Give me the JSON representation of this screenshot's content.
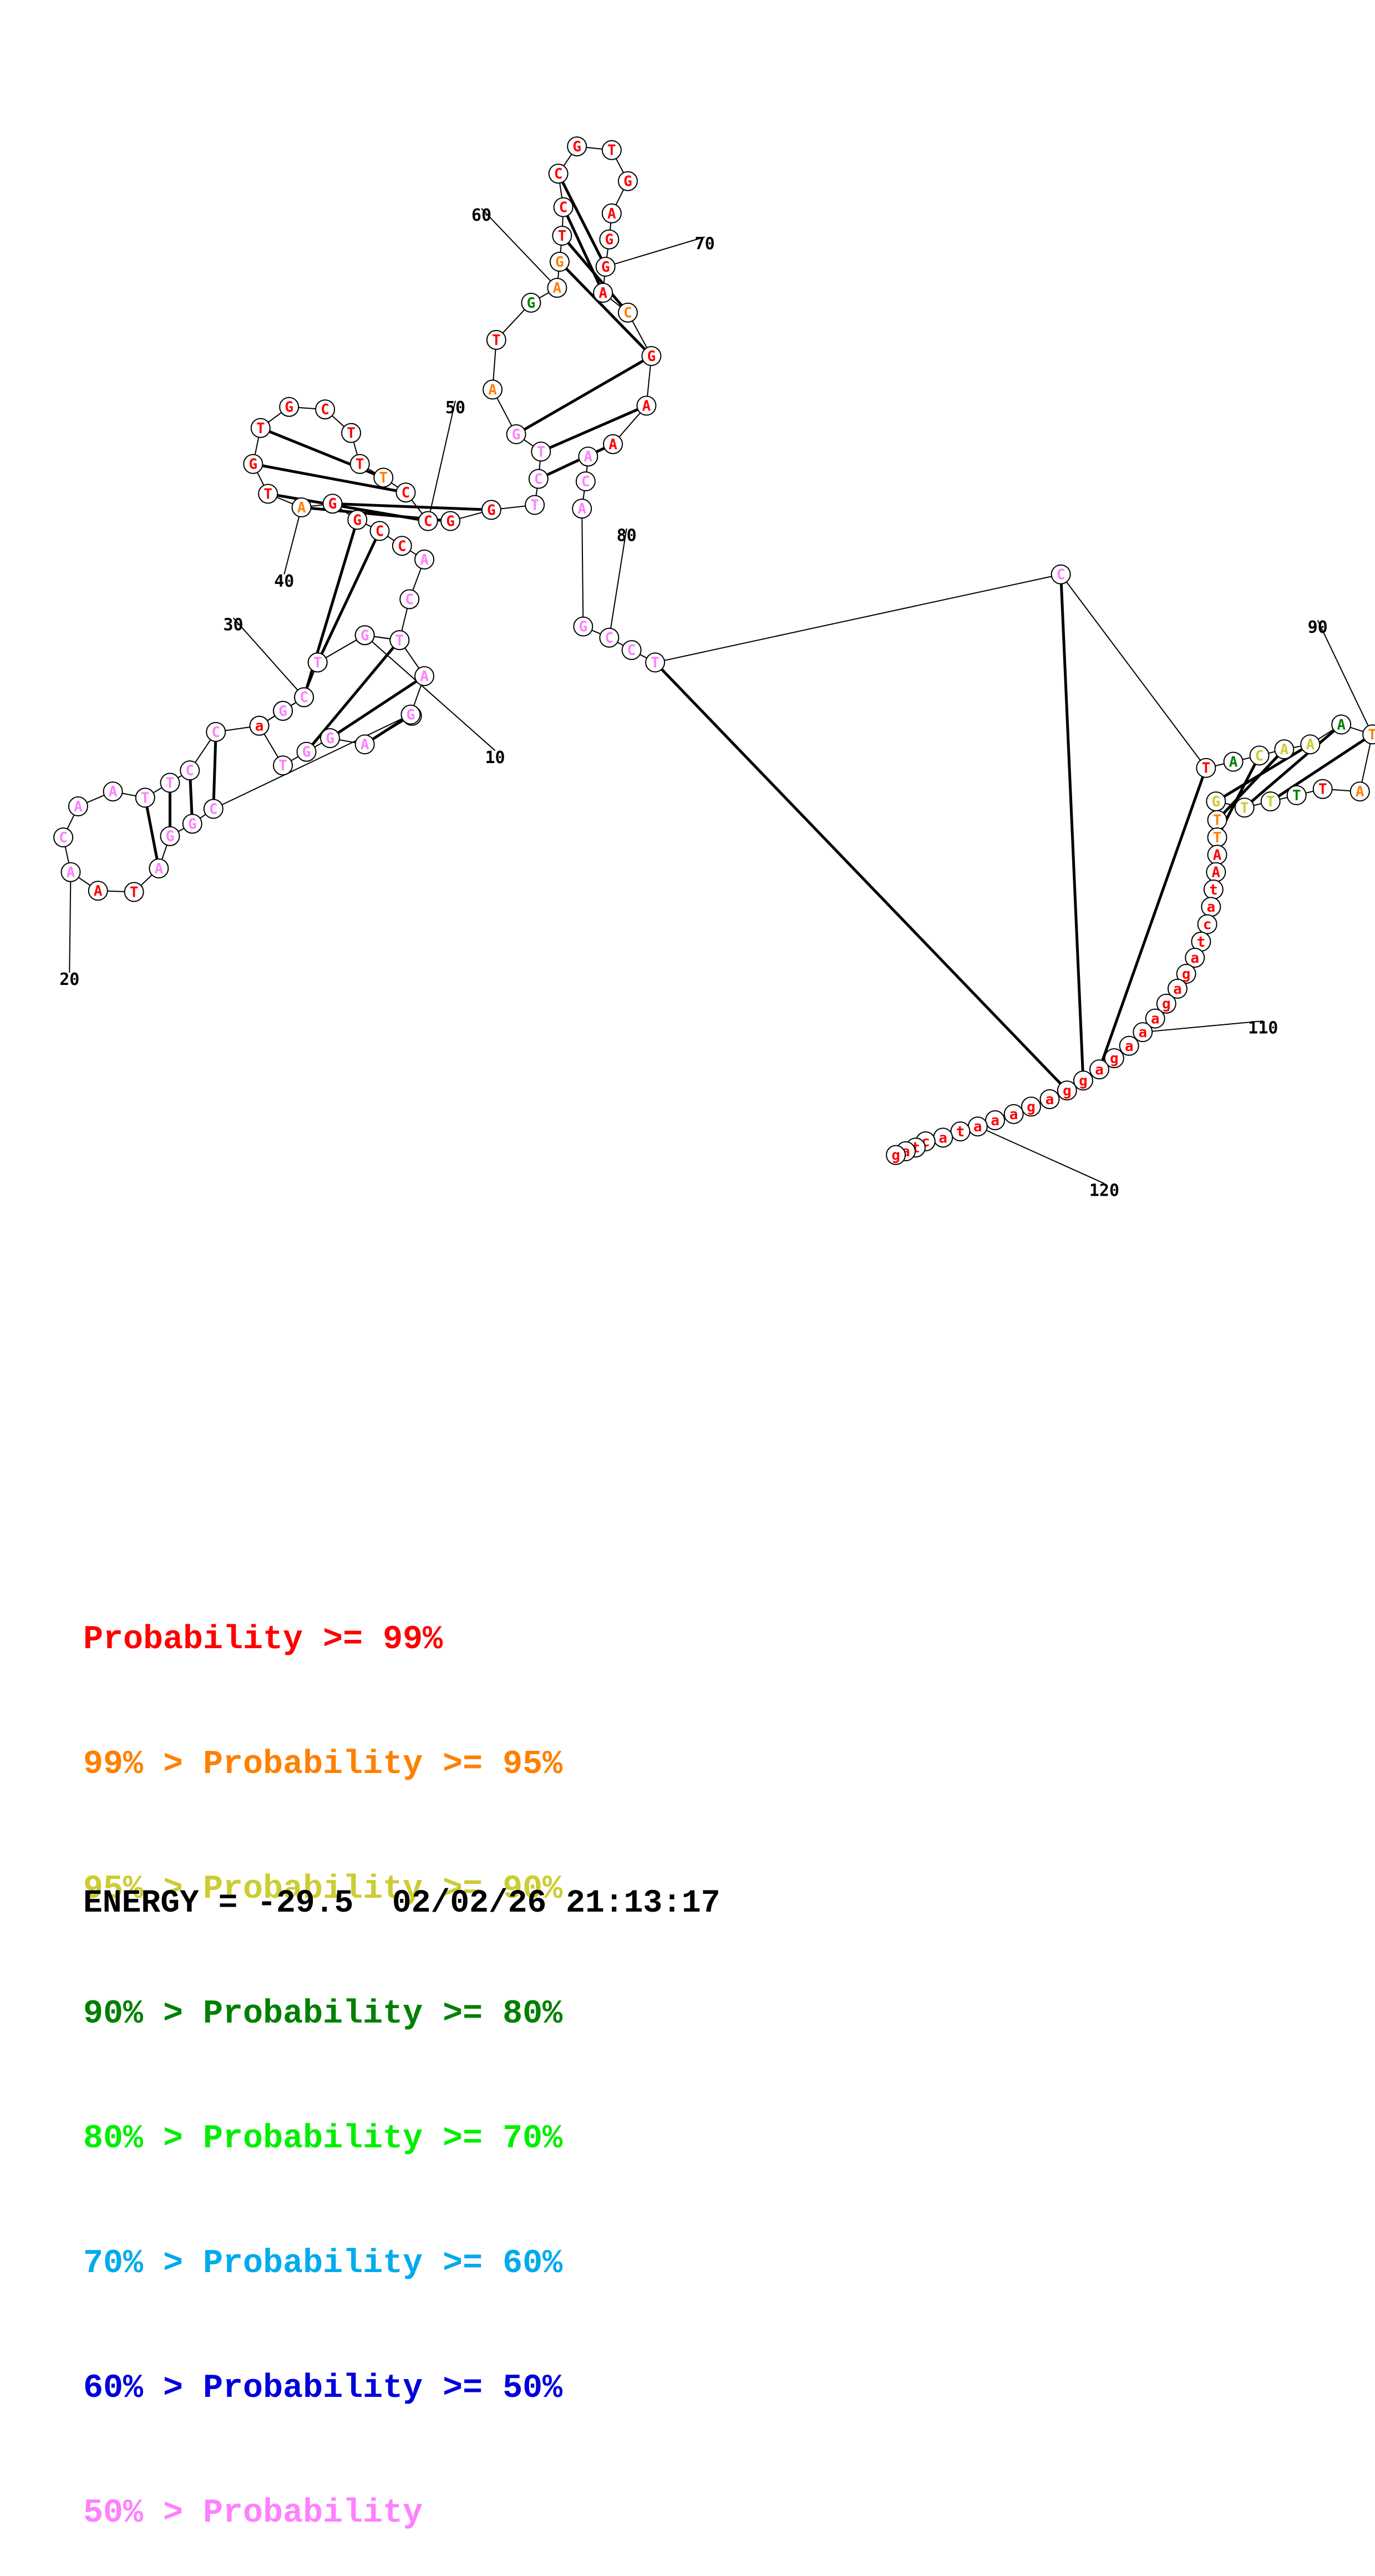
{
  "colors": {
    "p99": "#ff0000",
    "p95": "#ff8000",
    "p90": "#cccc33",
    "p80": "#008000",
    "p70": "#00ee00",
    "p60": "#00aaee",
    "p50": "#0000dd",
    "low": "#ff80ff"
  },
  "structure": {
    "nucleotides": [
      {
        "n": 1,
        "base": "G",
        "p": "p99"
      },
      {
        "n": 2,
        "base": "A",
        "p": "low"
      },
      {
        "n": 3,
        "base": "G",
        "p": "low"
      },
      {
        "n": 4,
        "base": "G",
        "p": "low"
      },
      {
        "n": 5,
        "base": "T",
        "p": "low"
      },
      {
        "n": 6,
        "base": "T",
        "p": "low"
      },
      {
        "n": 7,
        "base": "G",
        "p": "low"
      },
      {
        "n": 8,
        "base": "T",
        "p": "low"
      },
      {
        "n": 9,
        "base": "C",
        "p": "low"
      },
      {
        "n": 10,
        "base": "T",
        "p": "low"
      },
      {
        "n": 11,
        "base": "G",
        "p": "p99"
      },
      {
        "n": 12,
        "base": "A",
        "p": "low"
      },
      {
        "n": 13,
        "base": "G",
        "p": "low"
      },
      {
        "n": 14,
        "base": "C",
        "p": "low"
      },
      {
        "n": 15,
        "base": "G",
        "p": "low"
      },
      {
        "n": 16,
        "base": "G",
        "p": "low"
      },
      {
        "n": 17,
        "base": "A",
        "p": "low"
      },
      {
        "n": 18,
        "base": "T",
        "p": "p99"
      },
      {
        "n": 19,
        "base": "A",
        "p": "p99"
      },
      {
        "n": 20,
        "base": "A",
        "p": "low"
      },
      {
        "n": 21,
        "base": "C",
        "p": "low"
      },
      {
        "n": 22,
        "base": "A",
        "p": "low"
      },
      {
        "n": 23,
        "base": "A",
        "p": "low"
      },
      {
        "n": 24,
        "base": "T",
        "p": "low"
      },
      {
        "n": 25,
        "base": "T",
        "p": "low"
      },
      {
        "n": 26,
        "base": "C",
        "p": "low"
      },
      {
        "n": 27,
        "base": "C",
        "p": "low"
      },
      {
        "n": 28,
        "base": "a",
        "p": "p99"
      },
      {
        "n": 29,
        "base": "G",
        "p": "low"
      },
      {
        "n": 30,
        "base": "C",
        "p": "low"
      },
      {
        "n": 31,
        "base": "T",
        "p": "low"
      },
      {
        "n": 32,
        "base": "G",
        "p": "low"
      },
      {
        "n": 33,
        "base": "T",
        "p": "low"
      },
      {
        "n": 34,
        "base": "C",
        "p": "low"
      },
      {
        "n": 35,
        "base": "A",
        "p": "low"
      },
      {
        "n": 36,
        "base": "C",
        "p": "p99"
      },
      {
        "n": 37,
        "base": "C",
        "p": "p99"
      },
      {
        "n": 38,
        "base": "G",
        "p": "p99"
      },
      {
        "n": 39,
        "base": "G",
        "p": "p99"
      },
      {
        "n": 40,
        "base": "A",
        "p": "p95"
      },
      {
        "n": 41,
        "base": "T",
        "p": "p99"
      },
      {
        "n": 42,
        "base": "G",
        "p": "p99"
      },
      {
        "n": 43,
        "base": "T",
        "p": "p99"
      },
      {
        "n": 44,
        "base": "G",
        "p": "p99"
      },
      {
        "n": 45,
        "base": "C",
        "p": "p99"
      },
      {
        "n": 46,
        "base": "T",
        "p": "p99"
      },
      {
        "n": 47,
        "base": "T",
        "p": "p99"
      },
      {
        "n": 48,
        "base": "T",
        "p": "p95"
      },
      {
        "n": 49,
        "base": "C",
        "p": "p99"
      },
      {
        "n": 50,
        "base": "C",
        "p": "p99"
      },
      {
        "n": 51,
        "base": "G",
        "p": "p99"
      },
      {
        "n": 52,
        "base": "G",
        "p": "p99"
      },
      {
        "n": 53,
        "base": "T",
        "p": "low"
      },
      {
        "n": 54,
        "base": "C",
        "p": "low"
      },
      {
        "n": 55,
        "base": "T",
        "p": "low"
      },
      {
        "n": 56,
        "base": "G",
        "p": "low"
      },
      {
        "n": 57,
        "base": "A",
        "p": "p95"
      },
      {
        "n": 58,
        "base": "T",
        "p": "p99"
      },
      {
        "n": 59,
        "base": "G",
        "p": "p80"
      },
      {
        "n": 60,
        "base": "A",
        "p": "p95"
      },
      {
        "n": 61,
        "base": "G",
        "p": "p95"
      },
      {
        "n": 62,
        "base": "T",
        "p": "p99"
      },
      {
        "n": 63,
        "base": "C",
        "p": "p99"
      },
      {
        "n": 64,
        "base": "C",
        "p": "p99"
      },
      {
        "n": 65,
        "base": "G",
        "p": "p99"
      },
      {
        "n": 66,
        "base": "T",
        "p": "p99"
      },
      {
        "n": 67,
        "base": "G",
        "p": "p99"
      },
      {
        "n": 68,
        "base": "A",
        "p": "p99"
      },
      {
        "n": 69,
        "base": "G",
        "p": "p99"
      },
      {
        "n": 70,
        "base": "G",
        "p": "p99"
      },
      {
        "n": 71,
        "base": "A",
        "p": "p99"
      },
      {
        "n": 72,
        "base": "C",
        "p": "p95"
      },
      {
        "n": 73,
        "base": "G",
        "p": "p99"
      },
      {
        "n": 74,
        "base": "A",
        "p": "p99"
      },
      {
        "n": 75,
        "base": "A",
        "p": "p99"
      },
      {
        "n": 76,
        "base": "A",
        "p": "low"
      },
      {
        "n": 77,
        "base": "C",
        "p": "low"
      },
      {
        "n": 78,
        "base": "A",
        "p": "low"
      },
      {
        "n": 79,
        "base": "G",
        "p": "low"
      },
      {
        "n": 80,
        "base": "C",
        "p": "low"
      },
      {
        "n": 81,
        "base": "C",
        "p": "low"
      },
      {
        "n": 82,
        "base": "T",
        "p": "low"
      },
      {
        "n": 83,
        "base": "C",
        "p": "low"
      },
      {
        "n": 84,
        "base": "T",
        "p": "p99"
      },
      {
        "n": 85,
        "base": "A",
        "p": "p80"
      },
      {
        "n": 86,
        "base": "C",
        "p": "p90"
      },
      {
        "n": 87,
        "base": "A",
        "p": "p90"
      },
      {
        "n": 88,
        "base": "A",
        "p": "p90"
      },
      {
        "n": 89,
        "base": "A",
        "p": "p80"
      },
      {
        "n": 90,
        "base": "T",
        "p": "p95"
      },
      {
        "n": 91,
        "base": "A",
        "p": "p95"
      },
      {
        "n": 92,
        "base": "T",
        "p": "p99"
      },
      {
        "n": 93,
        "base": "T",
        "p": "p80"
      },
      {
        "n": 94,
        "base": "T",
        "p": "p90"
      },
      {
        "n": 95,
        "base": "T",
        "p": "p90"
      },
      {
        "n": 96,
        "base": "G",
        "p": "p90"
      },
      {
        "n": 97,
        "base": "T",
        "p": "p95"
      },
      {
        "n": 98,
        "base": "T",
        "p": "p95"
      },
      {
        "n": 99,
        "base": "A",
        "p": "p99"
      },
      {
        "n": 100,
        "base": "A",
        "p": "p99"
      },
      {
        "n": 101,
        "base": "t",
        "p": "p99"
      },
      {
        "n": 102,
        "base": "a",
        "p": "p99"
      },
      {
        "n": 103,
        "base": "c",
        "p": "p99"
      },
      {
        "n": 104,
        "base": "t",
        "p": "p99"
      },
      {
        "n": 105,
        "base": "a",
        "p": "p99"
      },
      {
        "n": 106,
        "base": "g",
        "p": "p99"
      },
      {
        "n": 107,
        "base": "a",
        "p": "p99"
      },
      {
        "n": 108,
        "base": "g",
        "p": "p99"
      },
      {
        "n": 109,
        "base": "a",
        "p": "p99"
      },
      {
        "n": 110,
        "base": "a",
        "p": "p99"
      },
      {
        "n": 111,
        "base": "a",
        "p": "p99"
      },
      {
        "n": 112,
        "base": "g",
        "p": "p99"
      },
      {
        "n": 113,
        "base": "a",
        "p": "p99"
      },
      {
        "n": 114,
        "base": "g",
        "p": "p99"
      },
      {
        "n": 115,
        "base": "g",
        "p": "p99"
      },
      {
        "n": 116,
        "base": "a",
        "p": "p99"
      },
      {
        "n": 117,
        "base": "g",
        "p": "p99"
      },
      {
        "n": 118,
        "base": "a",
        "p": "p99"
      },
      {
        "n": 119,
        "base": "a",
        "p": "p99"
      },
      {
        "n": 120,
        "base": "a",
        "p": "p99"
      },
      {
        "n": 121,
        "base": "t",
        "p": "p99"
      },
      {
        "n": 122,
        "base": "a",
        "p": "p99"
      },
      {
        "n": 123,
        "base": "c",
        "p": "p99"
      },
      {
        "n": 124,
        "base": "t",
        "p": "p99"
      },
      {
        "n": 125,
        "base": "a",
        "p": "p99"
      },
      {
        "n": 126,
        "base": "g",
        "p": "p99"
      }
    ],
    "pairs": [
      [
        2,
        13
      ],
      [
        3,
        12
      ],
      [
        4,
        11
      ],
      [
        14,
        27
      ],
      [
        15,
        26
      ],
      [
        16,
        25
      ],
      [
        17,
        24
      ],
      [
        30,
        38
      ],
      [
        31,
        37
      ],
      [
        39,
        52
      ],
      [
        40,
        51
      ],
      [
        41,
        50
      ],
      [
        42,
        49
      ],
      [
        43,
        48
      ],
      [
        54,
        75
      ],
      [
        55,
        74
      ],
      [
        56,
        73
      ],
      [
        61,
        73
      ],
      [
        62,
        72
      ],
      [
        63,
        71
      ],
      [
        64,
        70
      ],
      [
        82,
        115
      ],
      [
        83,
        114
      ],
      [
        84,
        113
      ],
      [
        86,
        98
      ],
      [
        87,
        97
      ],
      [
        88,
        96
      ],
      [
        89,
        95
      ],
      [
        90,
        94
      ]
    ],
    "position_labels": [
      "10",
      "20",
      "30",
      "40",
      "50",
      "60",
      "70",
      "80",
      "90",
      "110",
      "120"
    ]
  },
  "legend": [
    {
      "prefix": "",
      "text": "Probability >= 99%",
      "color": "p99"
    },
    {
      "prefix": "99% > ",
      "text": "Probability >= 95%",
      "color": "p95"
    },
    {
      "prefix": "95% > ",
      "text": "Probability >= 90%",
      "color": "p90"
    },
    {
      "prefix": "90% > ",
      "text": "Probability >= 80%",
      "color": "p80"
    },
    {
      "prefix": "80% > ",
      "text": "Probability >= 70%",
      "color": "p70"
    },
    {
      "prefix": "70% > ",
      "text": "Probability >= 60%",
      "color": "p60"
    },
    {
      "prefix": "60% > ",
      "text": "Probability >= 50%",
      "color": "p50"
    },
    {
      "prefix": "50% > ",
      "text": "Probability",
      "color": "low"
    }
  ],
  "energy": {
    "label": "ENERGY = -29.5",
    "timestamp": "02/02/26 21:13:17"
  }
}
